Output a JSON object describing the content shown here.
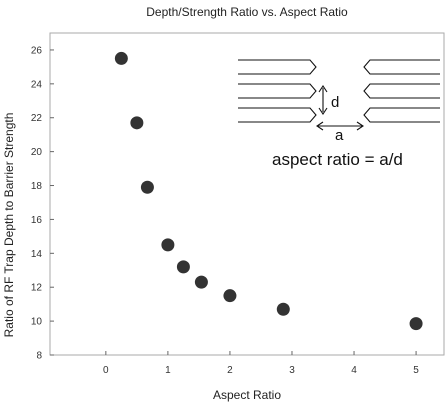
{
  "chart_data": {
    "type": "scatter",
    "title": "Depth/Strength Ratio vs. Aspect Ratio",
    "xlabel": "Aspect Ratio",
    "ylabel": "Ratio of RF Trap Depth to Barrier Strength",
    "xlim": [
      -0.9,
      5.45
    ],
    "ylim": [
      8,
      27
    ],
    "x_ticks": [
      0,
      1,
      2,
      3,
      4,
      5
    ],
    "y_ticks": [
      8,
      10,
      12,
      14,
      16,
      18,
      20,
      22,
      24,
      26
    ],
    "grid": false,
    "marker_color": "#333333",
    "points": [
      {
        "x": 0.25,
        "y": 25.5
      },
      {
        "x": 0.5,
        "y": 21.7
      },
      {
        "x": 0.67,
        "y": 17.9
      },
      {
        "x": 1.0,
        "y": 14.5
      },
      {
        "x": 1.25,
        "y": 13.2
      },
      {
        "x": 1.54,
        "y": 12.3
      },
      {
        "x": 2.0,
        "y": 11.5
      },
      {
        "x": 2.86,
        "y": 10.7
      },
      {
        "x": 5.0,
        "y": 9.85
      }
    ],
    "annotation": {
      "label_d": "d",
      "label_a": "a",
      "formula": "aspect ratio = a/d"
    }
  }
}
